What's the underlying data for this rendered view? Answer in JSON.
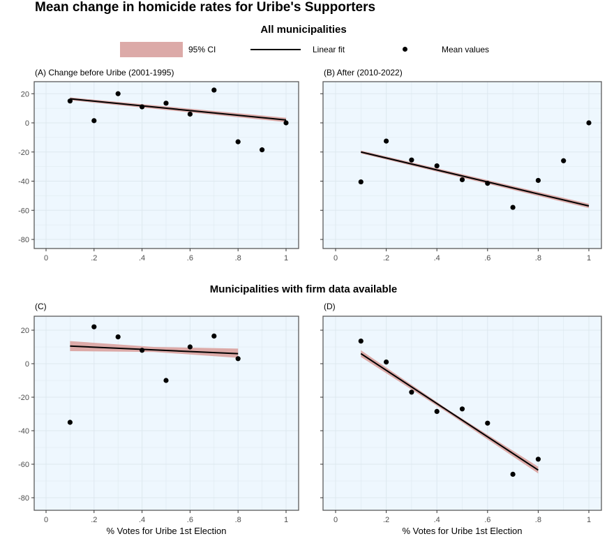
{
  "figure_title": "Mean change in homicide rates for Uribe's Supporters",
  "section_titles": [
    "All municipalities",
    "Municipalities with firm data available"
  ],
  "legend": {
    "ci_label": "95% CI",
    "fit_label": "Linear fit",
    "points_label": "Mean values"
  },
  "colors": {
    "panel_bg": "#eef7fe",
    "grid": "#dde8ef",
    "ci": "#dcaaa8",
    "line": "#000000",
    "points": "#000000",
    "frame": "#5a5a5a"
  },
  "chart_data": [
    {
      "type": "scatter",
      "title": "(A) Change before Uribe (2001-1995)",
      "xlabel": "",
      "ylabel": "",
      "xlim": [
        0,
        1
      ],
      "ylim": [
        -86,
        27
      ],
      "x_ticks": [
        0,
        0.2,
        0.4,
        0.6,
        0.8,
        1
      ],
      "x_tick_labels": [
        "0",
        ".2",
        ".4",
        ".6",
        ".8",
        "1"
      ],
      "y_ticks": [
        -80,
        -60,
        -40,
        -20,
        0,
        20
      ],
      "y_tick_labels": [
        "-80",
        "-60",
        "-40",
        "-20",
        "0",
        "20"
      ],
      "y_tick_labels_visible": true,
      "grid": true,
      "x": [
        0.1,
        0.2,
        0.3,
        0.4,
        0.5,
        0.6,
        0.7,
        0.8,
        0.9,
        1.0
      ],
      "y": [
        15,
        1.5,
        20,
        11,
        13.5,
        6,
        22.5,
        -13,
        -18.5,
        0
      ],
      "fit": {
        "x": [
          0.1,
          1.0
        ],
        "y": [
          16.5,
          2
        ]
      },
      "ci": {
        "x": [
          0.1,
          1.0
        ],
        "upper": [
          17.5,
          3.5
        ],
        "lower": [
          15.5,
          0.5
        ]
      }
    },
    {
      "type": "scatter",
      "title": "(B) After (2010-2022)",
      "xlabel": "",
      "ylabel": "",
      "xlim": [
        0,
        1
      ],
      "ylim": [
        -86,
        27
      ],
      "x_ticks": [
        0,
        0.2,
        0.4,
        0.6,
        0.8,
        1
      ],
      "x_tick_labels": [
        "0",
        ".2",
        ".4",
        ".6",
        ".8",
        "1"
      ],
      "y_ticks": [
        -80,
        -60,
        -40,
        -20,
        0,
        20
      ],
      "y_tick_labels": [
        "-80",
        "-60",
        "-40",
        "-20",
        "0",
        "20"
      ],
      "y_tick_labels_visible": false,
      "grid": true,
      "x": [
        0.1,
        0.2,
        0.3,
        0.4,
        0.5,
        0.6,
        0.7,
        0.8,
        0.9,
        1.0
      ],
      "y": [
        -40.5,
        -12.5,
        -25.5,
        -29.5,
        -39,
        -41.5,
        -58,
        -39.5,
        -26,
        0
      ],
      "fit": {
        "x": [
          0.1,
          1.0
        ],
        "y": [
          -20,
          -57
        ]
      },
      "ci": {
        "x": [
          0.1,
          1.0
        ],
        "upper": [
          -19,
          -55.5
        ],
        "lower": [
          -21,
          -58.5
        ]
      }
    },
    {
      "type": "scatter",
      "title": "(C)",
      "xlabel": "% Votes for Uribe 1st Election",
      "ylabel": "",
      "xlim": [
        0,
        1
      ],
      "ylim": [
        -86,
        27
      ],
      "x_ticks": [
        0,
        0.2,
        0.4,
        0.6,
        0.8,
        1
      ],
      "x_tick_labels": [
        "0",
        ".2",
        ".4",
        ".6",
        ".8",
        "1"
      ],
      "y_ticks": [
        -80,
        -60,
        -40,
        -20,
        0,
        20
      ],
      "y_tick_labels": [
        "-80",
        "-60",
        "-40",
        "-20",
        "0",
        "20"
      ],
      "y_tick_labels_visible": true,
      "grid": true,
      "x": [
        0.1,
        0.2,
        0.3,
        0.4,
        0.5,
        0.6,
        0.7,
        0.8
      ],
      "y": [
        -35,
        22,
        16,
        8,
        -10,
        10,
        16.5,
        3
      ],
      "fit": {
        "x": [
          0.1,
          0.8
        ],
        "y": [
          10.5,
          6
        ]
      },
      "ci": {
        "x": [
          0.1,
          0.45,
          0.8
        ],
        "upper": [
          13.5,
          10,
          9
        ],
        "lower": [
          7.5,
          7,
          3.5
        ]
      }
    },
    {
      "type": "scatter",
      "title": "(D)",
      "xlabel": "% Votes for Uribe 1st Election",
      "ylabel": "",
      "xlim": [
        0,
        1
      ],
      "ylim": [
        -86,
        27
      ],
      "x_ticks": [
        0,
        0.2,
        0.4,
        0.6,
        0.8,
        1
      ],
      "x_tick_labels": [
        "0",
        ".2",
        ".4",
        ".6",
        ".8",
        "1"
      ],
      "y_ticks": [
        -80,
        -60,
        -40,
        -20,
        0,
        20
      ],
      "y_tick_labels": [
        "-80",
        "-60",
        "-40",
        "-20",
        "0",
        "20"
      ],
      "y_tick_labels_visible": false,
      "grid": true,
      "x": [
        0.1,
        0.2,
        0.3,
        0.4,
        0.5,
        0.6,
        0.7,
        0.8
      ],
      "y": [
        13.5,
        1,
        -17,
        -28.5,
        -27,
        -35.5,
        -66,
        -57
      ],
      "fit": {
        "x": [
          0.1,
          0.8
        ],
        "y": [
          6,
          -63.5
        ]
      },
      "ci": {
        "x": [
          0.1,
          0.45,
          0.8
        ],
        "upper": [
          8,
          -28,
          -61.5
        ],
        "lower": [
          4,
          -30,
          -65.5
        ]
      }
    }
  ]
}
